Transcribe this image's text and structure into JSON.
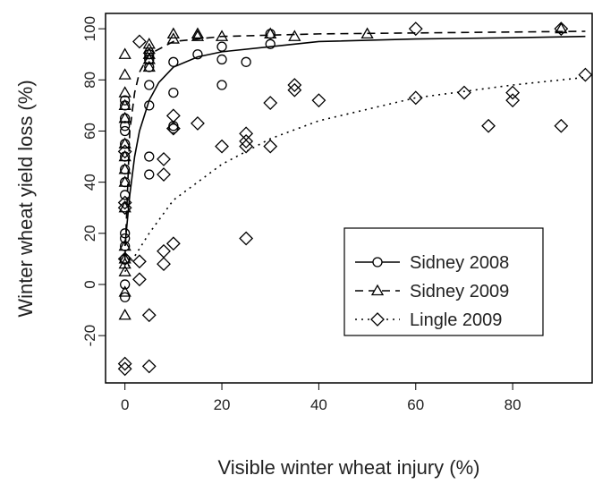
{
  "chart_data": {
    "type": "scatter",
    "xlabel": "Visible winter wheat injury (%)",
    "ylabel": "Winter wheat yield loss (%)",
    "xlim": [
      -4,
      96.4
    ],
    "ylim": [
      -38.5,
      106
    ],
    "xticks": [
      0,
      20,
      40,
      60,
      80
    ],
    "yticks": [
      -20,
      0,
      20,
      40,
      60,
      80,
      100
    ],
    "legend": "right",
    "series": [
      {
        "name": "Sidney 2008",
        "color": "#000000",
        "marker": "circle",
        "line_style": "solid",
        "x": [
          0,
          0,
          0,
          0,
          0,
          0,
          0,
          0,
          0,
          0,
          0,
          0,
          0,
          0,
          0,
          0,
          5,
          5,
          5,
          5,
          5,
          5,
          5,
          10,
          10,
          10,
          10,
          15,
          20,
          20,
          20,
          25,
          30,
          30
        ],
        "y": [
          -5,
          0,
          10,
          15,
          18,
          20,
          35,
          40,
          45,
          50,
          55,
          60,
          62,
          65,
          70,
          72,
          43,
          50,
          70,
          78,
          85,
          88,
          90,
          61,
          62,
          75,
          87,
          90,
          78,
          88,
          93,
          87,
          94,
          98
        ],
        "fit_x": [
          0,
          1,
          2,
          3,
          5,
          7,
          10,
          15,
          20,
          30,
          40,
          60,
          80,
          95
        ],
        "fit_y": [
          15,
          35,
          50,
          60,
          72,
          79,
          85,
          89,
          91,
          93,
          95,
          96,
          96.5,
          97
        ]
      },
      {
        "name": "Sidney 2009",
        "color": "#000000",
        "marker": "triangle",
        "line_style": "dashed",
        "x": [
          0,
          0,
          0,
          0,
          0,
          0,
          0,
          0,
          0,
          0,
          0,
          0,
          0,
          0,
          0,
          0,
          5,
          5,
          5,
          5,
          5,
          10,
          10,
          15,
          15,
          20,
          30,
          35,
          50,
          90
        ],
        "y": [
          -12,
          -3,
          5,
          8,
          10,
          15,
          30,
          40,
          45,
          50,
          55,
          65,
          70,
          75,
          82,
          90,
          85,
          88,
          90,
          92,
          94,
          96,
          98,
          97,
          98,
          97,
          98,
          97,
          98,
          100
        ],
        "fit_x": [
          0,
          1,
          2,
          3,
          5,
          10,
          20,
          40,
          95
        ],
        "fit_y": [
          10,
          60,
          75,
          83,
          90,
          95,
          97,
          98,
          99
        ]
      },
      {
        "name": "Lingle 2009",
        "color": "#000000",
        "marker": "diamond",
        "line_style": "dotted",
        "x": [
          0,
          0,
          0,
          0,
          0,
          0,
          3,
          3,
          3,
          5,
          5,
          8,
          8,
          8,
          8,
          10,
          10,
          10,
          15,
          20,
          25,
          25,
          25,
          25,
          30,
          30,
          35,
          35,
          40,
          60,
          60,
          70,
          75,
          80,
          80,
          90,
          90,
          95
        ],
        "y": [
          -33,
          -31,
          10,
          30,
          32,
          52,
          2,
          9,
          95,
          -32,
          -12,
          8,
          13,
          43,
          49,
          16,
          61,
          66,
          63,
          54,
          18,
          54,
          56,
          59,
          54,
          71,
          76,
          78,
          72,
          73,
          100,
          75,
          62,
          72,
          75,
          62,
          100,
          82
        ],
        "fit_x": [
          0,
          5,
          10,
          20,
          30,
          40,
          60,
          80,
          95
        ],
        "fit_y": [
          5,
          20,
          33,
          47,
          57,
          64,
          73,
          78,
          81
        ]
      }
    ]
  }
}
